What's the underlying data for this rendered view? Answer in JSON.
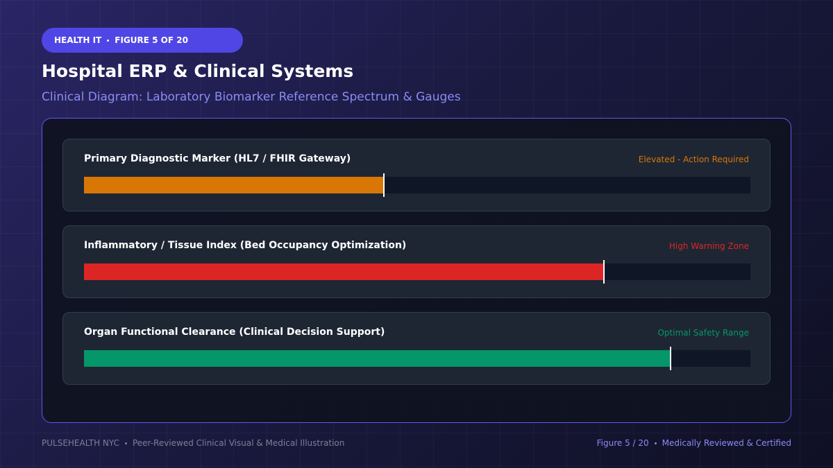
{
  "header": {
    "badge": [
      "HEALTH IT",
      "FIGURE 5 OF 20"
    ],
    "title": "Hospital ERP & Clinical Systems",
    "subtitle": "Clinical Diagram: Laboratory Biomarker Reference Spectrum & Gauges"
  },
  "chart_data": {
    "type": "gauge",
    "categories": [
      "Primary Diagnostic Marker (HL7 / FHIR Gateway)",
      "Inflammatory / Tissue Index (Bed Occupancy Optimization)",
      "Organ Functional Clearance (Clinical Decision Support)"
    ],
    "values": [
      45,
      78,
      88
    ],
    "statuses": [
      "Elevated - Action Required",
      "High Warning Zone",
      "Optimal Safety Range"
    ],
    "colors": [
      "#d97706",
      "#dc2626",
      "#059669"
    ],
    "xlim": [
      0,
      100
    ]
  },
  "footer": {
    "left": [
      "PULSEHEALTH NYC",
      "Peer-Reviewed Clinical Visual & Medical Illustration"
    ],
    "right": [
      "Figure 5 / 20",
      "Medically Reviewed & Certified"
    ]
  }
}
